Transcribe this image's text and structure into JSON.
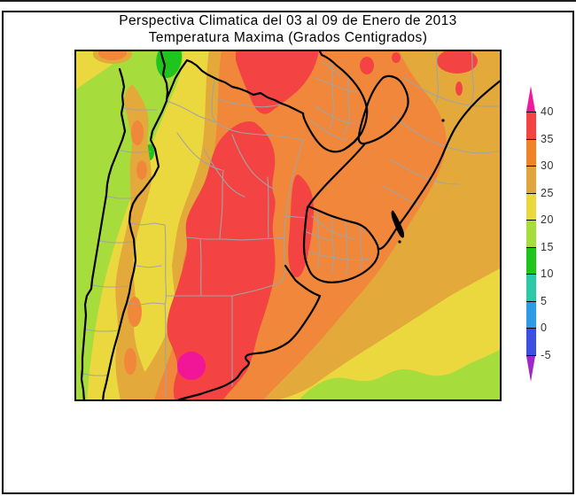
{
  "title": {
    "line1": "Perspectiva Climatica del 03 al 09 de Enero de 2013",
    "line2": "Temperatura Maxima (Grados Centigrados)"
  },
  "colorbar": {
    "unit": "Grados Centigrados",
    "ticks": [
      "40",
      "35",
      "30",
      "25",
      "20",
      "15",
      "10",
      "5",
      "0",
      "-5"
    ],
    "segments": [
      {
        "range": ">40",
        "color": "#f0199b",
        "shape": "arrow-up"
      },
      {
        "range": "35-40",
        "color": "#f34343"
      },
      {
        "range": "30-35",
        "color": "#f08228"
      },
      {
        "range": "25-30",
        "color": "#e0a53c"
      },
      {
        "range": "20-25",
        "color": "#ead83e"
      },
      {
        "range": "15-20",
        "color": "#a6dc3c"
      },
      {
        "range": "10-15",
        "color": "#1fc41f"
      },
      {
        "range": "5-10",
        "color": "#2cc9a8"
      },
      {
        "range": "0-5",
        "color": "#2e9be8"
      },
      {
        "range": "-5-0",
        "color": "#3d4fe0"
      },
      {
        "range": "<-5",
        "color": "#9e28c8",
        "shape": "arrow-down"
      }
    ]
  },
  "map": {
    "palette": {
      "yellow": "#ead83e",
      "green": "#a6dc3c",
      "darkgreen": "#1fc41f",
      "amber": "#e3a93b",
      "orange": "#f0873a",
      "red": "#f34343",
      "magenta": "#f01697",
      "border": "#000000",
      "province": "#a3a3a3"
    }
  }
}
